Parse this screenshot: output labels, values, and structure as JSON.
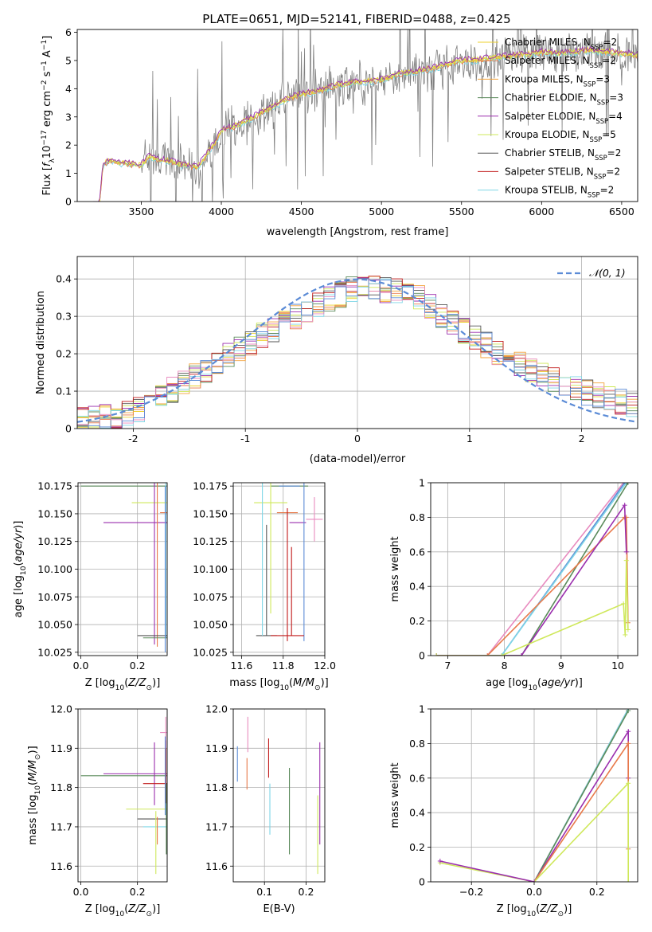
{
  "figure_title": "PLATE=0651, MJD=52141, FIBERID=0488, z=0.425",
  "colors": {
    "chabrier_miles": "#ecd02e",
    "salpeter_miles": "#e87a4a",
    "kroupa_miles": "#f3a23a",
    "chabrier_elodie": "#5a8a5a",
    "salpeter_elodie": "#9b2fae",
    "kroupa_elodie": "#cfe85b",
    "chabrier_stelib": "#555555",
    "salpeter_stelib": "#c01818",
    "kroupa_stelib": "#7fd6e6",
    "pink": "#e88bbf",
    "blue": "#5b8bd6",
    "gray": "#808080",
    "normal_curve": "#5b8bd6"
  },
  "chart_data": [
    {
      "id": "spectrum",
      "type": "line",
      "title": "PLATE=0651, MJD=52141, FIBERID=0488, z=0.425",
      "xlabel": "wavelength [Angstrom, rest frame]",
      "ylabel": "Flux [f_λ 10^-17 erg cm^-2 s^-1 A^-1]",
      "xlim": [
        3100,
        6600
      ],
      "ylim": [
        0,
        6.1
      ],
      "xticks": [
        3500,
        4000,
        4500,
        5000,
        5500,
        6000,
        6500
      ],
      "yticks": [
        0,
        1,
        2,
        3,
        4,
        5,
        6
      ],
      "legend_position": "top-right",
      "grid": false,
      "series": [
        {
          "name": "Chabrier MILES, N_SSP=2",
          "key": "chabrier_miles"
        },
        {
          "name": "Salpeter MILES, N_SSP=2",
          "key": "salpeter_miles"
        },
        {
          "name": "Kroupa MILES, N_SSP=3",
          "key": "kroupa_miles"
        },
        {
          "name": "Chabrier ELODIE, N_SSP=3",
          "key": "chabrier_elodie"
        },
        {
          "name": "Salpeter ELODIE, N_SSP=4",
          "key": "salpeter_elodie"
        },
        {
          "name": "Kroupa ELODIE, N_SSP=5",
          "key": "kroupa_elodie"
        },
        {
          "name": "Chabrier STELIB, N_SSP=2",
          "key": "chabrier_stelib"
        },
        {
          "name": "Salpeter STELIB, N_SSP=2",
          "key": "salpeter_stelib"
        },
        {
          "name": "Kroupa STELIB, N_SSP=2",
          "key": "kroupa_stelib"
        }
      ],
      "continuum": {
        "x": [
          3200,
          3240,
          3260,
          3300,
          3350,
          3400,
          3450,
          3500,
          3550,
          3600,
          3650,
          3700,
          3750,
          3800,
          3850,
          3900,
          3950,
          4000,
          4100,
          4200,
          4300,
          4400,
          4500,
          4600,
          4700,
          4800,
          4900,
          5000,
          5100,
          5200,
          5300,
          5400,
          5500,
          5600,
          5700,
          5800,
          5900,
          6000,
          6100,
          6200,
          6300,
          6400,
          6500,
          6600
        ],
        "y": [
          0,
          0,
          1.3,
          1.45,
          1.4,
          1.35,
          1.3,
          1.3,
          1.6,
          1.5,
          1.45,
          1.4,
          1.3,
          1.25,
          1.2,
          1.6,
          2.0,
          2.5,
          2.7,
          3.0,
          3.3,
          3.6,
          3.8,
          3.9,
          4.1,
          4.2,
          4.25,
          4.3,
          4.5,
          4.6,
          4.7,
          4.85,
          5.0,
          5.0,
          5.1,
          5.15,
          5.2,
          5.3,
          5.25,
          5.3,
          5.35,
          5.3,
          5.25,
          5.2
        ]
      },
      "noise_start": 3500
    },
    {
      "id": "residuals",
      "type": "line",
      "xlabel": "(data-model)/error",
      "ylabel": "Normed distribution",
      "xlim": [
        -2.5,
        2.5
      ],
      "ylim": [
        0,
        0.46
      ],
      "xticks": [
        -2,
        -1,
        0,
        1,
        2
      ],
      "yticks": [
        0.0,
        0.1,
        0.2,
        0.3,
        0.4
      ],
      "grid": true,
      "legend_position": "top-right",
      "legend_label": "𝒩(0, 1)",
      "bin_width": 0.1,
      "histogram_base": {
        "x": [
          -2.5,
          -2.0,
          -1.5,
          -1.0,
          -0.5,
          0.0,
          0.5,
          1.0,
          1.5,
          2.0,
          2.5
        ],
        "y": [
          0.02,
          0.04,
          0.13,
          0.22,
          0.31,
          0.38,
          0.36,
          0.25,
          0.16,
          0.1,
          0.06
        ]
      }
    },
    {
      "id": "age-vs-z",
      "type": "scatter",
      "xlabel": "Z [log10(Z/Z⊙)]",
      "ylabel": "age  [log10(age/yr)]",
      "xlim": [
        -0.01,
        0.305
      ],
      "ylim": [
        10.022,
        10.178
      ],
      "xticks": [
        0.0,
        0.2
      ],
      "xtick_labels": [
        "0.0",
        "0.2"
      ],
      "yticks": [
        10.025,
        10.05,
        10.075,
        10.1,
        10.125,
        10.15,
        10.175
      ],
      "ytick_labels": [
        "10.025",
        "10.050",
        "10.075",
        "10.100",
        "10.125",
        "10.150",
        "10.175"
      ],
      "grid": true,
      "points": [
        {
          "x": 0.3,
          "y": 10.175,
          "xerr": 0.3,
          "yerr": 0.0,
          "key": "chabrier_elodie"
        },
        {
          "x": 0.3,
          "y": 10.175,
          "xerr": 0.0,
          "yerr": 0.137,
          "key": "kroupa_stelib"
        },
        {
          "x": 0.3,
          "y": 10.16,
          "xerr": 0.12,
          "yerr": 0.0,
          "key": "kroupa_elodie"
        },
        {
          "x": 0.3,
          "y": 10.151,
          "xerr": 0.02,
          "yerr": 0.0,
          "key": "salpeter_miles"
        },
        {
          "x": 0.26,
          "y": 10.142,
          "xerr": 0.18,
          "yerr": 0.0,
          "key": "salpeter_elodie"
        },
        {
          "x": 0.26,
          "y": 10.142,
          "xerr": 0.0,
          "yerr": 0.11,
          "key": "salpeter_elodie"
        },
        {
          "x": 0.27,
          "y": 10.15,
          "xerr": 0.0,
          "yerr": 0.12,
          "key": "salpeter_miles"
        },
        {
          "x": 0.3,
          "y": 10.04,
          "xerr": 0.1,
          "yerr": 0.0,
          "key": "chabrier_stelib"
        },
        {
          "x": 0.3,
          "y": 10.038,
          "xerr": 0.08,
          "yerr": 0.0,
          "key": "chabrier_elodie"
        },
        {
          "x": 0.298,
          "y": 10.1,
          "xerr": 0.0,
          "yerr": 0.075,
          "key": "blue"
        }
      ]
    },
    {
      "id": "age-vs-mass",
      "type": "scatter",
      "xlabel": "mass [log10(M/M⊙)]",
      "ylabel": "",
      "xlim": [
        11.56,
        12.0
      ],
      "ylim": [
        10.022,
        10.178
      ],
      "xticks": [
        11.6,
        11.8,
        12.0
      ],
      "xtick_labels": [
        "11.6",
        "11.8",
        "12.0"
      ],
      "yticks": [
        10.025,
        10.05,
        10.075,
        10.1,
        10.125,
        10.15,
        10.175
      ],
      "ytick_labels": [
        "10.025",
        "10.050",
        "10.075",
        "10.100",
        "10.125",
        "10.150",
        "10.175"
      ],
      "grid": true,
      "points": [
        {
          "x": 11.83,
          "y": 10.175,
          "xerr": 0.09,
          "yerr": 0.0,
          "key": "chabrier_elodie"
        },
        {
          "x": 11.83,
          "y": 10.175,
          "xerr": 0.05,
          "yerr": 0.0,
          "key": "blue"
        },
        {
          "x": 11.74,
          "y": 10.16,
          "xerr": 0.08,
          "yerr": 0.0,
          "key": "kroupa_elodie"
        },
        {
          "x": 11.74,
          "y": 10.16,
          "xerr": 0.0,
          "yerr": 0.1,
          "key": "kroupa_elodie"
        },
        {
          "x": 11.87,
          "y": 10.142,
          "xerr": 0.04,
          "yerr": 0.0,
          "key": "salpeter_elodie"
        },
        {
          "x": 11.82,
          "y": 10.151,
          "xerr": 0.05,
          "yerr": 0.0,
          "key": "salpeter_miles"
        },
        {
          "x": 11.95,
          "y": 10.145,
          "xerr": 0.04,
          "yerr": 0.02,
          "key": "pink"
        },
        {
          "x": 11.9,
          "y": 10.175,
          "xerr": 0.0,
          "yerr": 0.14,
          "key": "blue"
        },
        {
          "x": 11.72,
          "y": 10.04,
          "xerr": 0.05,
          "yerr": 0.0,
          "key": "chabrier_stelib"
        },
        {
          "x": 11.72,
          "y": 10.09,
          "xerr": 0.0,
          "yerr": 0.05,
          "key": "chabrier_stelib"
        },
        {
          "x": 11.7,
          "y": 10.145,
          "xerr": 0.0,
          "yerr": 0.105,
          "key": "kroupa_stelib"
        },
        {
          "x": 11.82,
          "y": 10.095,
          "xerr": 0.0,
          "yerr": 0.06,
          "key": "salpeter_stelib"
        },
        {
          "x": 11.82,
          "y": 10.04,
          "xerr": 0.08,
          "yerr": 0.0,
          "key": "salpeter_stelib"
        },
        {
          "x": 11.84,
          "y": 10.08,
          "xerr": 0.0,
          "yerr": 0.04,
          "key": "salpeter_stelib"
        }
      ]
    },
    {
      "id": "massweight-vs-age",
      "type": "line",
      "xlabel": "age  [log10(age/yr)]",
      "ylabel": "mass weight",
      "xlim": [
        6.7,
        10.35
      ],
      "ylim": [
        0,
        1.0
      ],
      "xticks": [
        7,
        8,
        9,
        10
      ],
      "yticks": [
        0.0,
        0.2,
        0.4,
        0.6,
        0.8,
        1.0
      ],
      "grid": true,
      "series": [
        {
          "key": "pink",
          "x": [
            6.8,
            7.7,
            10.1
          ],
          "y": [
            0.0,
            0.0,
            1.0
          ]
        },
        {
          "key": "blue",
          "x": [
            6.8,
            7.95,
            10.12
          ],
          "y": [
            0.0,
            0.0,
            1.0
          ]
        },
        {
          "key": "kroupa_stelib",
          "x": [
            6.8,
            7.95,
            10.15
          ],
          "y": [
            0.0,
            0.0,
            1.0
          ]
        },
        {
          "key": "chabrier_elodie",
          "x": [
            6.8,
            8.3,
            10.18
          ],
          "y": [
            0.0,
            0.0,
            1.0
          ]
        },
        {
          "key": "salpeter_miles",
          "x": [
            6.8,
            7.7,
            10.12,
            10.15,
            10.18
          ],
          "y": [
            0.0,
            0.0,
            0.8,
            0.8,
            0.19
          ]
        },
        {
          "key": "salpeter_elodie",
          "x": [
            6.8,
            8.3,
            10.12,
            10.15
          ],
          "y": [
            0.0,
            0.0,
            0.87,
            0.6
          ]
        },
        {
          "key": "kroupa_elodie",
          "x": [
            6.8,
            7.95,
            10.1,
            10.13,
            10.15,
            10.18
          ],
          "y": [
            0.0,
            0.0,
            0.3,
            0.12,
            0.55,
            0.15
          ]
        }
      ]
    },
    {
      "id": "mass-vs-z",
      "type": "scatter",
      "xlabel": "Z [log10(Z/Z⊙)]",
      "ylabel": "mass [log10(M/M⊙)]",
      "xlim": [
        -0.01,
        0.305
      ],
      "ylim": [
        11.56,
        12.0
      ],
      "xticks": [
        0.0,
        0.2
      ],
      "xtick_labels": [
        "0.0",
        "0.2"
      ],
      "yticks": [
        11.6,
        11.7,
        11.8,
        11.9,
        12.0
      ],
      "ytick_labels": [
        "11.6",
        "11.7",
        "11.8",
        "11.9",
        "12.0"
      ],
      "grid": true,
      "points": [
        {
          "x": 0.3,
          "y": 11.83,
          "xerr": 0.3,
          "yerr": 0.0,
          "key": "chabrier_elodie"
        },
        {
          "x": 0.26,
          "y": 11.835,
          "xerr": 0.18,
          "yerr": 0.0,
          "key": "salpeter_elodie"
        },
        {
          "x": 0.26,
          "y": 11.835,
          "xerr": 0.0,
          "yerr": 0.08,
          "key": "salpeter_elodie"
        },
        {
          "x": 0.3,
          "y": 11.81,
          "xerr": 0.08,
          "yerr": 0.0,
          "key": "salpeter_stelib"
        },
        {
          "x": 0.3,
          "y": 11.84,
          "xerr": 0.0,
          "yerr": 0.08,
          "key": "salpeter_stelib"
        },
        {
          "x": 0.3,
          "y": 11.745,
          "xerr": 0.14,
          "yerr": 0.0,
          "key": "kroupa_elodie"
        },
        {
          "x": 0.3,
          "y": 11.72,
          "xerr": 0.1,
          "yerr": 0.0,
          "key": "chabrier_stelib"
        },
        {
          "x": 0.3,
          "y": 11.7,
          "xerr": 0.08,
          "yerr": 0.0,
          "key": "kroupa_stelib"
        },
        {
          "x": 0.27,
          "y": 11.69,
          "xerr": 0.0,
          "yerr": 0.035,
          "key": "salpeter_miles"
        },
        {
          "x": 0.265,
          "y": 11.66,
          "xerr": 0.0,
          "yerr": 0.08,
          "key": "kroupa_elodie"
        },
        {
          "x": 0.3,
          "y": 11.94,
          "xerr": 0.02,
          "yerr": 0.04,
          "key": "pink"
        },
        {
          "x": 0.298,
          "y": 11.83,
          "xerr": 0.0,
          "yerr": 0.1,
          "key": "blue"
        },
        {
          "x": 0.302,
          "y": 11.72,
          "xerr": 0.0,
          "yerr": 0.09,
          "key": "chabrier_elodie"
        }
      ]
    },
    {
      "id": "mass-vs-ebv",
      "type": "scatter",
      "xlabel": "E(B-V)",
      "ylabel": "",
      "xlim": [
        0.025,
        0.245
      ],
      "ylim": [
        11.56,
        12.0
      ],
      "xticks": [
        0.1,
        0.2
      ],
      "xtick_labels": [
        "0.1",
        "0.2"
      ],
      "yticks": [
        11.6,
        11.7,
        11.8,
        11.9,
        12.0
      ],
      "ytick_labels": [
        "11.6",
        "11.7",
        "11.8",
        "11.9",
        "12.0"
      ],
      "grid": true,
      "points": [
        {
          "x": 0.035,
          "y": 11.86,
          "xerr": 0.0,
          "yerr": 0.045,
          "key": "blue"
        },
        {
          "x": 0.06,
          "y": 11.935,
          "xerr": 0.0,
          "yerr": 0.045,
          "key": "pink"
        },
        {
          "x": 0.058,
          "y": 11.835,
          "xerr": 0.0,
          "yerr": 0.04,
          "key": "salpeter_miles"
        },
        {
          "x": 0.11,
          "y": 11.875,
          "xerr": 0.0,
          "yerr": 0.05,
          "key": "salpeter_stelib"
        },
        {
          "x": 0.113,
          "y": 11.745,
          "xerr": 0.0,
          "yerr": 0.065,
          "key": "kroupa_stelib"
        },
        {
          "x": 0.16,
          "y": 11.74,
          "xerr": 0.0,
          "yerr": 0.11,
          "key": "chabrier_elodie"
        },
        {
          "x": 0.233,
          "y": 11.785,
          "xerr": 0.0,
          "yerr": 0.13,
          "key": "salpeter_elodie"
        },
        {
          "x": 0.228,
          "y": 11.68,
          "xerr": 0.0,
          "yerr": 0.1,
          "key": "kroupa_elodie"
        }
      ]
    },
    {
      "id": "massweight-vs-z",
      "type": "line",
      "xlabel": "Z [log10(Z/Z⊙)]",
      "ylabel": "mass weight",
      "xlim": [
        -0.33,
        0.33
      ],
      "ylim": [
        0,
        1.0
      ],
      "xticks": [
        -0.2,
        0.0,
        0.2
      ],
      "xtick_labels": [
        "−0.2",
        "0.0",
        "0.2"
      ],
      "yticks": [
        0.0,
        0.2,
        0.4,
        0.6,
        0.8,
        1.0
      ],
      "grid": true,
      "series": [
        {
          "key": "pink",
          "x": [
            0.0,
            0.3
          ],
          "y": [
            0.0,
            1.0
          ]
        },
        {
          "key": "kroupa_stelib",
          "x": [
            0.0,
            0.3
          ],
          "y": [
            0.0,
            1.0
          ]
        },
        {
          "key": "chabrier_elodie",
          "x": [
            0.0,
            0.3
          ],
          "y": [
            0.0,
            0.99
          ]
        },
        {
          "key": "salpeter_elodie",
          "x": [
            0.0,
            0.3,
            0.3
          ],
          "y": [
            0.0,
            0.87,
            0.6
          ]
        },
        {
          "key": "salpeter_miles",
          "x": [
            0.0,
            0.3,
            0.3
          ],
          "y": [
            0.0,
            0.8,
            0.19
          ]
        },
        {
          "key": "kroupa_elodie",
          "x": [
            -0.3,
            0.0,
            0.3,
            0.3
          ],
          "y": [
            0.11,
            0.0,
            0.57,
            0.0
          ]
        },
        {
          "key": "salpeter_elodie",
          "x": [
            -0.3,
            0.0
          ],
          "y": [
            0.12,
            0.0
          ]
        }
      ]
    }
  ]
}
